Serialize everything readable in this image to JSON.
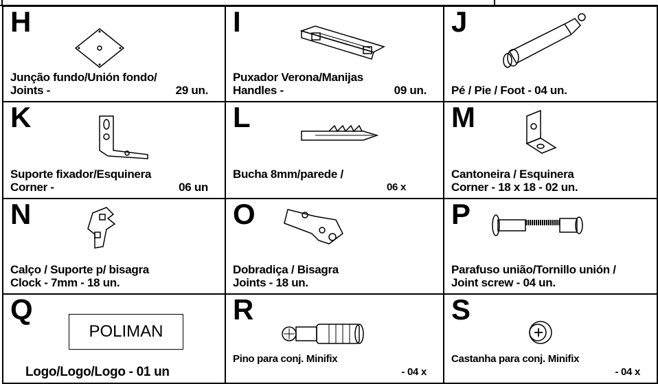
{
  "parts": [
    {
      "letter": "H",
      "lines": [
        {
          "left": "Junção fundo/Unión fondo/"
        },
        {
          "left": "Joints -",
          "right": "29 un."
        }
      ]
    },
    {
      "letter": "I",
      "lines": [
        {
          "left": "Puxador Verona/Manijas"
        },
        {
          "left": "Handles -",
          "right": "09 un."
        }
      ]
    },
    {
      "letter": "J",
      "lines": [
        {
          "left": "Pé / Pie / Foot - 04 un."
        }
      ]
    },
    {
      "letter": "K",
      "lines": [
        {
          "left": "Suporte fixador/Esquinera"
        },
        {
          "left": "Corner -",
          "right": "06 un"
        }
      ]
    },
    {
      "letter": "L",
      "lines": [
        {
          "left": "Bucha 8mm/parede /"
        },
        {
          "right": "06 x"
        }
      ]
    },
    {
      "letter": "M",
      "lines": [
        {
          "left": "Cantoneira / Esquinera"
        },
        {
          "left": "Corner - 18 x 18 - 02 un."
        }
      ]
    },
    {
      "letter": "N",
      "lines": [
        {
          "left": "Calço / Suporte p/ bisagra"
        },
        {
          "left": "Clock - 7mm - 18 un."
        }
      ]
    },
    {
      "letter": "O",
      "lines": [
        {
          "left": "Dobradiça / Bisagra"
        },
        {
          "left": "Joints - 18 un."
        }
      ]
    },
    {
      "letter": "P",
      "lines": [
        {
          "left": "Parafuso união/Tornillo unión /"
        },
        {
          "left": "Joint screw - 04 un."
        }
      ]
    },
    {
      "letter": "Q",
      "logo": "POLIMAN",
      "lines": [
        {
          "left": "Logo/Logo/Logo - 01 un"
        }
      ]
    },
    {
      "letter": "R",
      "lines": [
        {
          "left": "Pino para conj. Minifix"
        },
        {
          "right": "- 04 x"
        }
      ]
    },
    {
      "letter": "S",
      "lines": [
        {
          "left": "Castanha para conj. Minifix"
        },
        {
          "right": "- 04 x"
        }
      ]
    }
  ]
}
